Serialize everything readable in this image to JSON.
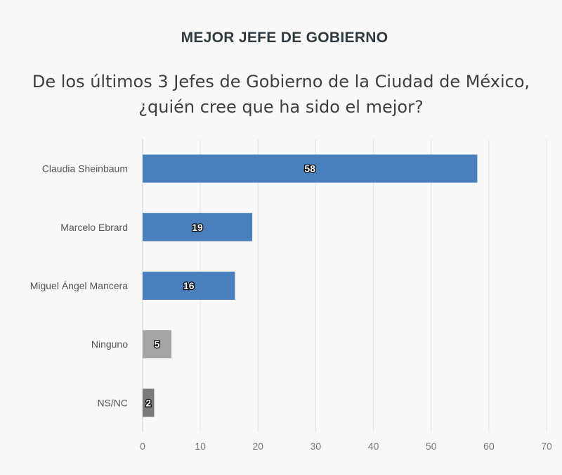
{
  "title": "MEJOR JEFE DE GOBIERNO",
  "subtitle_line1": "De los últimos 3 Jefes de Gobierno de la Ciudad de México,",
  "subtitle_line2": "¿quién cree que ha sido el mejor?",
  "chart_data": {
    "type": "bar",
    "orientation": "horizontal",
    "title": "MEJOR JEFE DE GOBIERNO",
    "subtitle": "De los últimos 3 Jefes de Gobierno de la Ciudad de México, ¿quién cree que ha sido el mejor?",
    "categories": [
      "Claudia Sheinbaum",
      "Marcelo Ebrard",
      "Miguel Ángel Mancera",
      "Ninguno",
      "NS/NC"
    ],
    "values": [
      58,
      19,
      16,
      5,
      2
    ],
    "data_labels": [
      "58",
      "19",
      "16",
      "5",
      "2"
    ],
    "colors": [
      "#4a7fbc",
      "#4a7fbc",
      "#4a7fbc",
      "#a5a5a5",
      "#7a7a7a"
    ],
    "xlim": [
      0,
      70
    ],
    "xticks": [
      0,
      10,
      20,
      30,
      40,
      50,
      60,
      70
    ],
    "xlabel": "",
    "ylabel": "",
    "grid": true,
    "legend": false
  }
}
